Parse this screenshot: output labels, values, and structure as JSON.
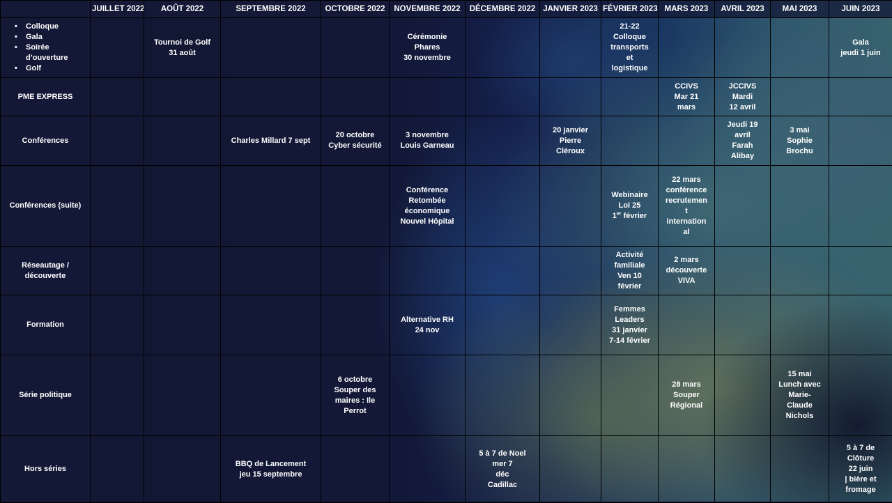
{
  "months": [
    "JUILLET 2022",
    "AOÛT 2022",
    "SEPTEMBRE 2022",
    "OCTOBRE 2022",
    "NOVEMBRE 2022",
    "DÉCEMBRE 2022",
    "JANVIER 2023",
    "FÉVRIER 2023",
    "MARS 2023",
    "AVRIL 2023",
    "MAI 2023",
    "JUIN 2023"
  ],
  "event_types": [
    "Colloque",
    "Gala",
    "Soirée d’ouverture",
    "Golf"
  ],
  "rows": [
    {
      "label": null,
      "cells": [
        "",
        "Tournoi de Golf\n31 août",
        "",
        "",
        "Cérémonie\nPhares\n30 novembre",
        "",
        "",
        "21-22\nColloque\ntransports\net\nlogistique",
        "",
        "",
        "",
        "Gala\njeudi 1 juin"
      ]
    },
    {
      "label": "PME EXPRESS",
      "cells": [
        "",
        "",
        "",
        "",
        "",
        "",
        "",
        "",
        "CCIVS\nMar 21\nmars",
        "JCCIVS\nMardi\n12 avril",
        "",
        ""
      ]
    },
    {
      "label": "Conférences",
      "cells": [
        "",
        "",
        "Charles Millard 7 sept",
        "20 octobre\nCyber sécurité",
        "3 novembre\nLouis Garneau",
        "",
        "20 janvier\nPierre\nCléroux",
        "",
        "",
        "Jeudi 19\navril\nFarah\nAlibay",
        "3 mai\nSophie\nBrochu",
        ""
      ]
    },
    {
      "label": "Conférences (suite)",
      "cells": [
        "",
        "",
        "",
        "",
        "Conférence\nRetombée\néconomique\nNouvel Hôpital",
        "",
        "",
        "Webinaire\nLoi 25\n1er février",
        "22 mars\nconférence\nrecrutemen\nt\ninternation\nal",
        "",
        "",
        ""
      ]
    },
    {
      "label": "Réseautage /\ndécouverte",
      "cells": [
        "",
        "",
        "",
        "",
        "",
        "",
        "",
        "Activité\nfamiliale\nVen 10\nfévrier",
        "2 mars\ndécouverte\nVIVA",
        "",
        "",
        ""
      ]
    },
    {
      "label": "Formation",
      "cells": [
        "",
        "",
        "",
        "",
        "Alternative RH\n24 nov",
        "",
        "",
        "Femmes\nLeaders\n31 janvier\n7-14 février",
        "",
        "",
        "",
        ""
      ]
    },
    {
      "label": "Série politique",
      "cells": [
        "",
        "",
        "",
        "6 octobre\nSouper des\nmaires : Ile\nPerrot",
        "",
        "",
        "",
        "",
        "28 mars\nSouper\nRégional",
        "",
        "15 mai\nLunch avec\nMarie-\nClaude\nNichols",
        ""
      ]
    },
    {
      "label": "Hors séries",
      "cells": [
        "",
        "",
        "BBQ de Lancement\njeu 15 septembre",
        "",
        "",
        "5 à 7 de Noel\nmer 7\ndéc\nCadillac",
        "",
        "",
        "",
        "",
        "",
        "5 à 7 de\nClôture\n22 juin\n| bière et\nfromage"
      ]
    }
  ]
}
